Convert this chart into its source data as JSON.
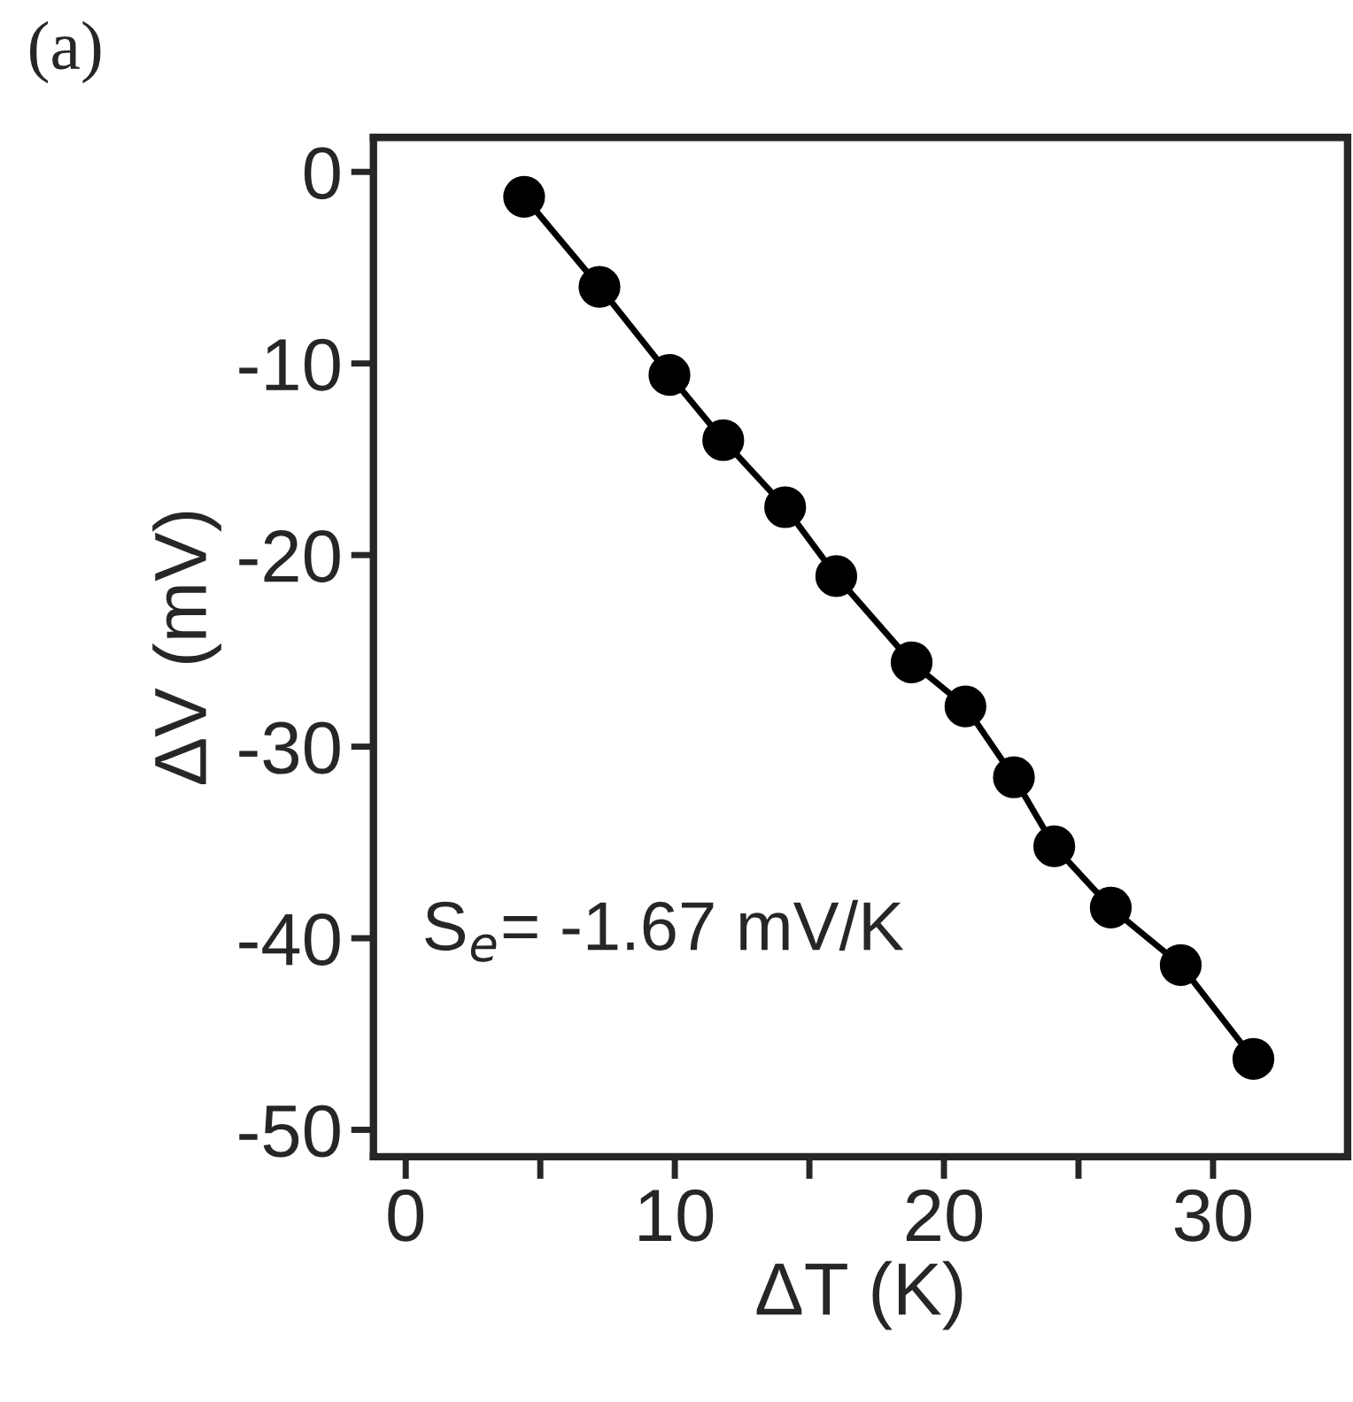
{
  "chart_data": {
    "type": "line",
    "title": "(a)",
    "xlabel": "ΔT (K)",
    "ylabel": "ΔV (mV)",
    "annotations": [
      "S$_{e}$= -1.67 mV/K"
    ],
    "xlim": [
      -1.2,
      35
    ],
    "xticks": [
      0,
      {
        "value": 5,
        "label": null
      },
      10,
      {
        "value": 15,
        "label": null
      },
      20,
      {
        "value": 25,
        "label": null
      },
      30
    ],
    "ylim": [
      -51.4,
      1.8
    ],
    "yticks": [
      0,
      {
        "value": -10,
        "label": "-10"
      },
      {
        "value": -20,
        "label": "-20"
      },
      {
        "value": -30,
        "label": "-30"
      },
      {
        "value": -40,
        "label": "-40"
      },
      {
        "value": -50,
        "label": "-50"
      }
    ],
    "marker": "circle",
    "line_style": "solid",
    "series": [
      {
        "color": "#000000",
        "x": [
          4.4,
          7.2,
          9.8,
          11.8,
          14.1,
          16.0,
          18.8,
          20.8,
          22.6,
          24.1,
          26.2,
          28.8,
          31.5
        ],
        "values": [
          -1.3,
          -6.0,
          -10.6,
          -14.0,
          -17.5,
          -21.1,
          -25.6,
          -27.9,
          -31.6,
          -35.2,
          -38.4,
          -41.4,
          -46.3
        ]
      }
    ]
  }
}
